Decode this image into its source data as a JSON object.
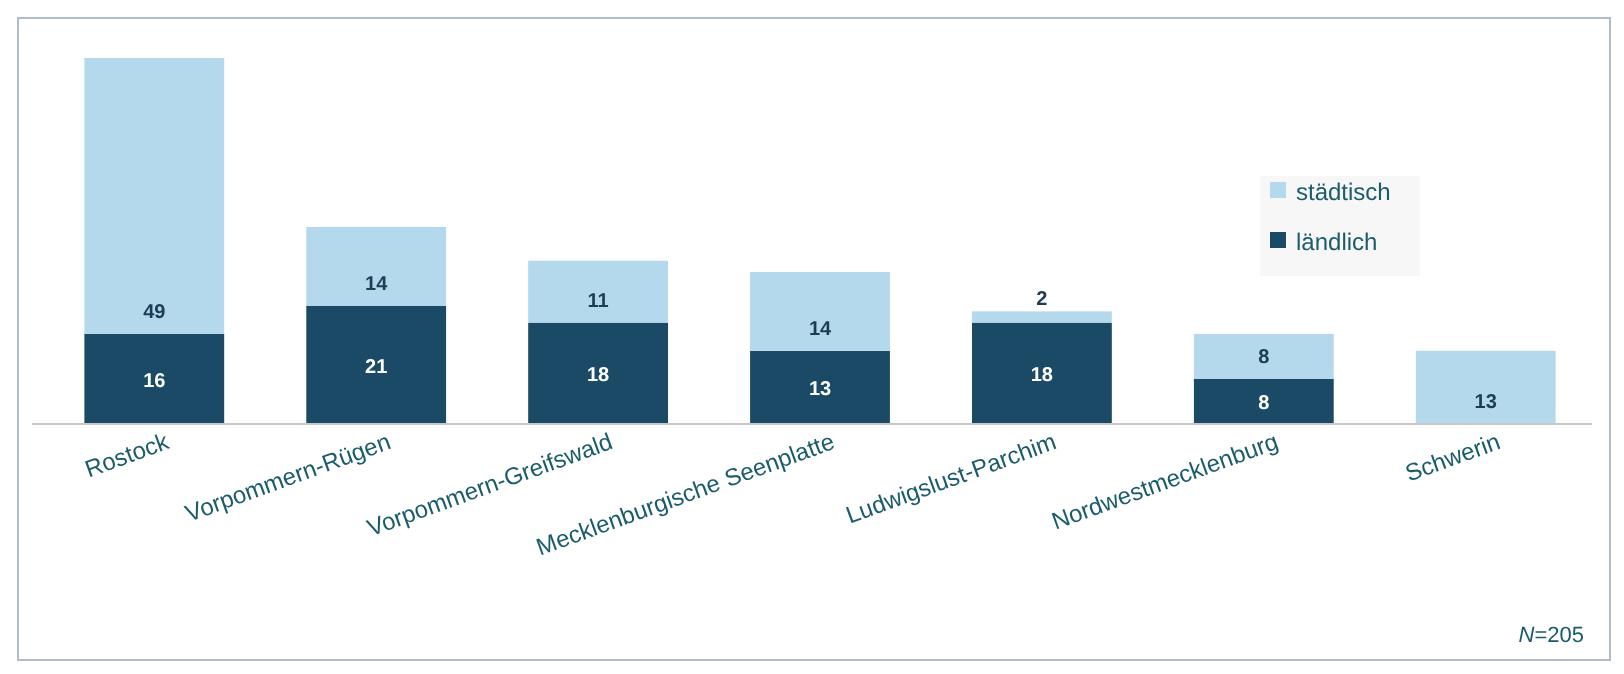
{
  "chart_data": {
    "type": "bar",
    "stacked": true,
    "data_labels": true,
    "legend": "right",
    "annotations": [
      "N=205"
    ],
    "categories": [
      "Rostock",
      "Vorpommern-Rügen",
      "Vorpommern-Greifswald",
      "Mecklenburgische Seenplatte",
      "Ludwigslust-Parchim",
      "Nordwestmecklenburg",
      "Schwerin"
    ],
    "series": [
      {
        "name": "ländlich",
        "color": "#1a4a66",
        "values": [
          16,
          21,
          18,
          13,
          18,
          8,
          null
        ]
      },
      {
        "name": "städtisch",
        "color": "#b4d8ec",
        "values": [
          49,
          14,
          11,
          14,
          2,
          8,
          13
        ]
      }
    ]
  }
}
